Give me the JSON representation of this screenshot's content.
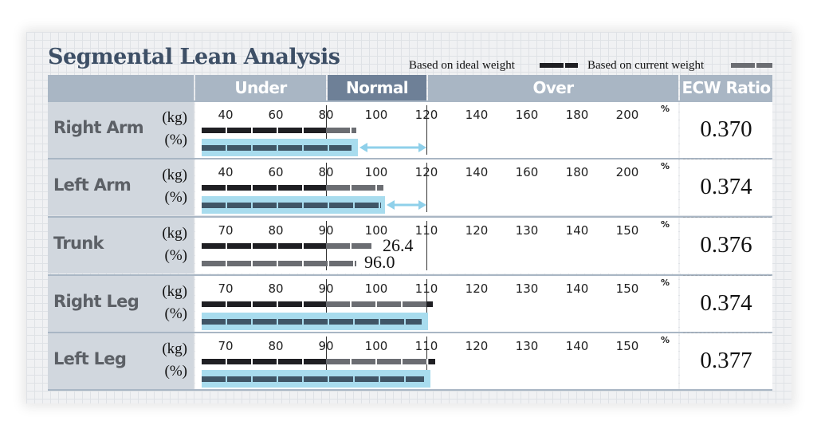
{
  "title": "Segmental Lean Analysis",
  "legend": {
    "ideal": "Based on ideal weight",
    "current": "Based on current weight",
    "colors": {
      "ideal": "#1f1f23",
      "current": "#6b6d72"
    }
  },
  "headers": {
    "under": "Under",
    "normal": "Normal",
    "over": "Over",
    "ecw": "ECW Ratio"
  },
  "units": {
    "kg": "(kg)",
    "pct": "(%)",
    "pct_sign": "%"
  },
  "scales": {
    "arm": {
      "min": 30,
      "max": 210,
      "ticks": [
        "40",
        "60",
        "80",
        "100",
        "120",
        "140",
        "160",
        "180",
        "200"
      ]
    },
    "body": {
      "min": 65,
      "max": 155,
      "ticks": [
        "70",
        "80",
        "90",
        "100",
        "110",
        "120",
        "130",
        "140",
        "150"
      ]
    }
  },
  "chart_data": {
    "type": "bar",
    "title": "Segmental Lean Analysis",
    "normal_range": {
      "arm": [
        80,
        120
      ],
      "body": [
        90,
        110
      ]
    },
    "categories": [
      "Right Arm",
      "Left Arm",
      "Trunk",
      "Right Leg",
      "Left Leg"
    ],
    "scale": [
      "arm",
      "arm",
      "body",
      "body",
      "body"
    ],
    "series": [
      {
        "name": "(kg)",
        "values": [
          92,
          103,
          99,
          110,
          110.5
        ]
      },
      {
        "name": "(%)",
        "values": [
          90,
          102,
          96,
          109,
          109.5
        ]
      }
    ],
    "highlighted": [
      true,
      true,
      false,
      true,
      true
    ],
    "printed_values": [
      null,
      null,
      {
        "kg": "26.4",
        "pct": "96.0"
      },
      null,
      null
    ],
    "ecw_ratio": [
      "0.370",
      "0.374",
      "0.376",
      "0.374",
      "0.377"
    ],
    "arrows": [
      true,
      true,
      false,
      false,
      false
    ],
    "colors": {
      "ideal": "#1f1f23",
      "current": "#6b6d72",
      "highlight": "#a8dcee",
      "pct_bar": "#3f5566"
    }
  }
}
